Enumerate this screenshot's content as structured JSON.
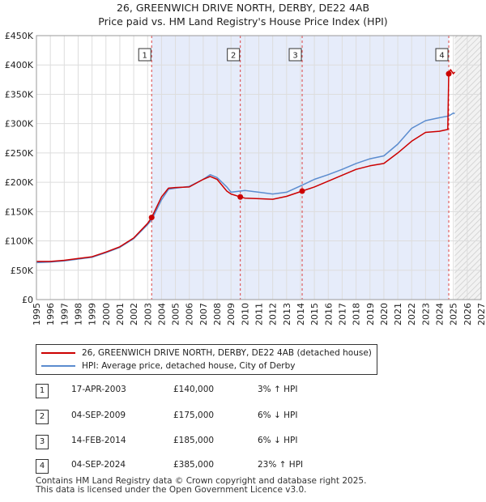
{
  "chart_data": {
    "type": "line",
    "title": "26, GREENWICH DRIVE NORTH, DERBY, DE22 4AB",
    "subtitle": "Price paid vs. HM Land Registry's House Price Index (HPI)",
    "xlim": [
      1995,
      2027
    ],
    "ylim": [
      0,
      450000
    ],
    "x_ticks": [
      "1995",
      "1996",
      "1997",
      "1998",
      "1999",
      "2000",
      "2001",
      "2002",
      "2003",
      "2004",
      "2005",
      "2006",
      "2007",
      "2008",
      "2009",
      "2010",
      "2011",
      "2012",
      "2013",
      "2014",
      "2015",
      "2016",
      "2017",
      "2018",
      "2019",
      "2020",
      "2021",
      "2022",
      "2023",
      "2024",
      "2025",
      "2026",
      "2027"
    ],
    "y_ticks": [
      {
        "value": 0,
        "label": "£0"
      },
      {
        "value": 50000,
        "label": "£50K"
      },
      {
        "value": 100000,
        "label": "£100K"
      },
      {
        "value": 150000,
        "label": "£150K"
      },
      {
        "value": 200000,
        "label": "£200K"
      },
      {
        "value": 250000,
        "label": "£250K"
      },
      {
        "value": 300000,
        "label": "£300K"
      },
      {
        "value": 350000,
        "label": "£350K"
      },
      {
        "value": 400000,
        "label": "£400K"
      },
      {
        "value": 450000,
        "label": "£450K"
      }
    ],
    "forecast_start": 2025.1,
    "series": [
      {
        "name": "26, GREENWICH DRIVE NORTH, DERBY, DE22 4AB (detached house)",
        "color": "#cc0000",
        "points": [
          [
            1995.0,
            65000
          ],
          [
            1996.0,
            65000
          ],
          [
            1997.0,
            67000
          ],
          [
            1998.0,
            70000
          ],
          [
            1999.0,
            73000
          ],
          [
            2000.0,
            81000
          ],
          [
            2001.0,
            90000
          ],
          [
            2002.0,
            105000
          ],
          [
            2003.0,
            130000
          ],
          [
            2003.29,
            140000
          ],
          [
            2004.0,
            175000
          ],
          [
            2004.5,
            190000
          ],
          [
            2005.0,
            191000
          ],
          [
            2006.0,
            192000
          ],
          [
            2007.0,
            205000
          ],
          [
            2007.5,
            210000
          ],
          [
            2008.0,
            205000
          ],
          [
            2008.7,
            185000
          ],
          [
            2009.0,
            180000
          ],
          [
            2009.67,
            175000
          ],
          [
            2010.0,
            173000
          ],
          [
            2011.0,
            172000
          ],
          [
            2012.0,
            171000
          ],
          [
            2013.0,
            176000
          ],
          [
            2014.12,
            185000
          ],
          [
            2015.0,
            192000
          ],
          [
            2016.0,
            202000
          ],
          [
            2017.0,
            212000
          ],
          [
            2018.0,
            222000
          ],
          [
            2019.0,
            228000
          ],
          [
            2020.0,
            232000
          ],
          [
            2021.0,
            250000
          ],
          [
            2022.0,
            270000
          ],
          [
            2023.0,
            285000
          ],
          [
            2024.0,
            287000
          ],
          [
            2024.6,
            290000
          ],
          [
            2024.67,
            385000
          ],
          [
            2024.8,
            392000
          ],
          [
            2025.0,
            385000
          ],
          [
            2025.1,
            388000
          ]
        ]
      },
      {
        "name": "HPI: Average price, detached house, City of Derby",
        "color": "#5b8ccf",
        "points": [
          [
            1995.0,
            63000
          ],
          [
            1996.0,
            64000
          ],
          [
            1997.0,
            66000
          ],
          [
            1998.0,
            69000
          ],
          [
            1999.0,
            72000
          ],
          [
            2000.0,
            80000
          ],
          [
            2001.0,
            89000
          ],
          [
            2002.0,
            104000
          ],
          [
            2003.0,
            128000
          ],
          [
            2003.29,
            136000
          ],
          [
            2004.0,
            170000
          ],
          [
            2004.5,
            188000
          ],
          [
            2005.0,
            190000
          ],
          [
            2006.0,
            193000
          ],
          [
            2007.0,
            205000
          ],
          [
            2007.5,
            213000
          ],
          [
            2008.0,
            208000
          ],
          [
            2008.7,
            192000
          ],
          [
            2009.0,
            183000
          ],
          [
            2009.67,
            185000
          ],
          [
            2010.0,
            186000
          ],
          [
            2011.0,
            183000
          ],
          [
            2012.0,
            180000
          ],
          [
            2013.0,
            183000
          ],
          [
            2014.12,
            195000
          ],
          [
            2015.0,
            205000
          ],
          [
            2016.0,
            213000
          ],
          [
            2017.0,
            222000
          ],
          [
            2018.0,
            232000
          ],
          [
            2019.0,
            240000
          ],
          [
            2020.0,
            245000
          ],
          [
            2021.0,
            265000
          ],
          [
            2022.0,
            292000
          ],
          [
            2023.0,
            305000
          ],
          [
            2024.0,
            310000
          ],
          [
            2024.67,
            313000
          ],
          [
            2025.0,
            318000
          ],
          [
            2025.1,
            317000
          ]
        ]
      }
    ],
    "sales": [
      {
        "marker": "1",
        "x": 2003.29,
        "price": 140000,
        "date": "17-APR-2003",
        "price_label": "£140,000",
        "hpi_label": "3% ↑ HPI"
      },
      {
        "marker": "2",
        "x": 2009.67,
        "price": 175000,
        "date": "04-SEP-2009",
        "price_label": "£175,000",
        "hpi_label": "6% ↓ HPI"
      },
      {
        "marker": "3",
        "x": 2014.12,
        "price": 185000,
        "date": "14-FEB-2014",
        "price_label": "£185,000",
        "hpi_label": "6% ↓ HPI"
      },
      {
        "marker": "4",
        "x": 2024.67,
        "price": 385000,
        "date": "04-SEP-2024",
        "price_label": "£385,000",
        "hpi_label": "23% ↑ HPI"
      }
    ],
    "colors": {
      "property": "#cc0000",
      "hpi": "#5b8ccf",
      "band": "#e6ecfa",
      "marker": "#cc0000"
    }
  },
  "legend": {
    "property_label": "26, GREENWICH DRIVE NORTH, DERBY, DE22 4AB (detached house)",
    "hpi_label": "HPI: Average price, detached house, City of Derby"
  },
  "footer": {
    "line1": "Contains HM Land Registry data © Crown copyright and database right 2025.",
    "line2": "This data is licensed under the Open Government Licence v3.0."
  }
}
